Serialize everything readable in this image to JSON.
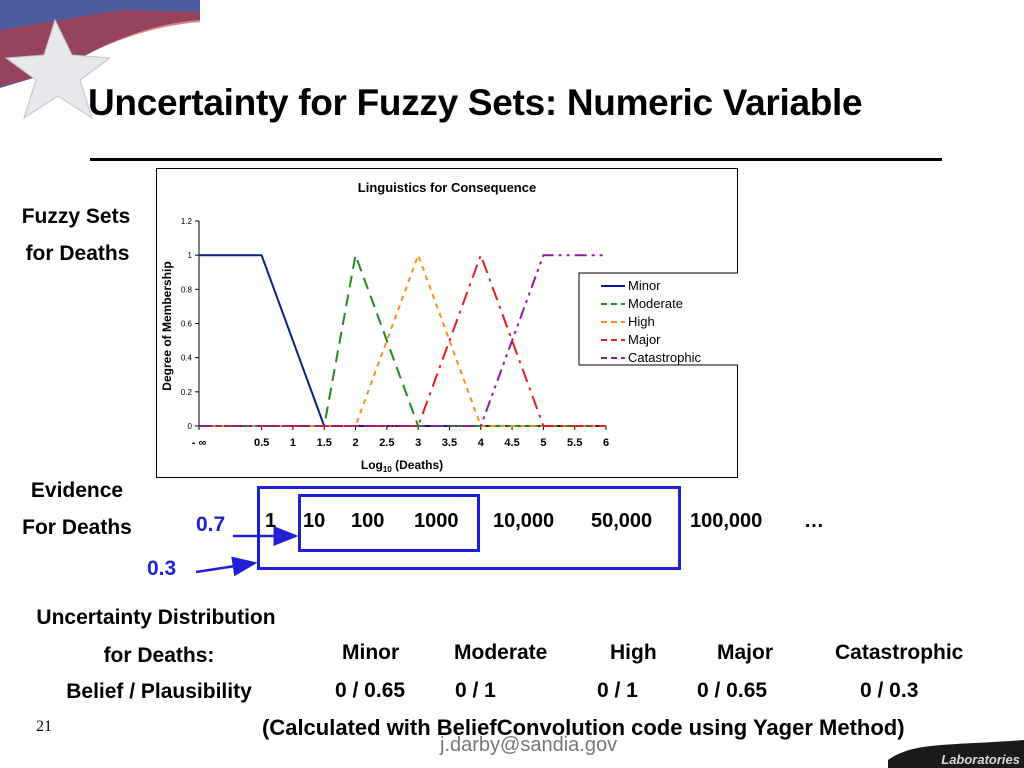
{
  "slide": {
    "title": "Uncertainty for Fuzzy Sets: Numeric Variable",
    "page_number": "21",
    "footer_email_fragment": "j.darby@sandia.gov",
    "footer_logo_text": "Laboratories"
  },
  "left_labels": {
    "fuzzy_sets_line1": "Fuzzy Sets",
    "fuzzy_sets_line2": "for Deaths",
    "evidence_line1": "Evidence",
    "evidence_line2": "For Deaths",
    "uncertainty_line1": "Uncertainty Distribution",
    "uncertainty_line2": "for Deaths:",
    "uncertainty_line3": "Belief / Plausibility"
  },
  "evidence": {
    "weight_high": "0.7",
    "weight_low": "0.3",
    "values": [
      "1",
      "10",
      "100",
      "1000",
      "10,000",
      "50,000",
      "100,000",
      "…"
    ]
  },
  "results": {
    "categories": [
      "Minor",
      "Moderate",
      "High",
      "Major",
      "Catastrophic"
    ],
    "belief_plausibility": [
      "0 / 0.65",
      "0 / 1",
      "0 / 1",
      "0 / 0.65",
      "0 / 0.3"
    ],
    "note": "(Calculated with BeliefConvolution code using Yager Method)"
  },
  "colors": {
    "minor": "#0a1e8c",
    "moderate": "#1e8c1e",
    "high": "#ff8c1a",
    "major": "#e02020",
    "catastrophic": "#8c1e9c",
    "accent_blue": "#1f1fd6"
  },
  "chart_data": {
    "type": "line",
    "title": "Linguistics for Consequence",
    "xlabel": "Log10 (Deaths)",
    "xlabel_main": "Log",
    "xlabel_sub": "10",
    "xlabel_tail": " (Deaths)",
    "ylabel": "Degree of Membership",
    "xlim": [
      -0.5,
      6
    ],
    "ylim": [
      0,
      1.2
    ],
    "x_ticks": [
      -0.5,
      0.5,
      1,
      1.5,
      2,
      2.5,
      3,
      3.5,
      4,
      4.5,
      5,
      5.5,
      6
    ],
    "x_tick_labels": [
      "- ∞",
      "0.5",
      "1",
      "1.5",
      "2",
      "2.5",
      "3",
      "3.5",
      "4",
      "4.5",
      "5",
      "5.5",
      "6"
    ],
    "y_ticks": [
      0,
      0.2,
      0.4,
      0.6,
      0.8,
      1,
      1.2
    ],
    "y_tick_labels": [
      "0",
      "0.2",
      "0.4",
      "0.6",
      "0.8",
      "1",
      "1.2"
    ],
    "grid": false,
    "legend_position": "right",
    "series": [
      {
        "name": "Minor",
        "style": "solid",
        "color_key": "minor",
        "points": [
          [
            -0.5,
            1
          ],
          [
            0.5,
            1
          ],
          [
            1.5,
            0
          ],
          [
            6,
            0
          ]
        ]
      },
      {
        "name": "Moderate",
        "style": "dash",
        "color_key": "moderate",
        "points": [
          [
            -0.5,
            0
          ],
          [
            0.5,
            0
          ],
          [
            1.5,
            0
          ],
          [
            2,
            1
          ],
          [
            3,
            0
          ],
          [
            6,
            0
          ]
        ]
      },
      {
        "name": "High",
        "style": "dot",
        "color_key": "high",
        "points": [
          [
            -0.5,
            0
          ],
          [
            2,
            0
          ],
          [
            3,
            1
          ],
          [
            4,
            0
          ],
          [
            6,
            0
          ]
        ]
      },
      {
        "name": "Major",
        "style": "dashdot",
        "color_key": "major",
        "points": [
          [
            -0.5,
            0
          ],
          [
            3,
            0
          ],
          [
            4,
            1
          ],
          [
            5,
            0
          ],
          [
            6,
            0
          ]
        ]
      },
      {
        "name": "Catastrophic",
        "style": "dashdotdot",
        "color_key": "catastrophic",
        "points": [
          [
            -0.5,
            0
          ],
          [
            4,
            0
          ],
          [
            5,
            1
          ],
          [
            6,
            1
          ]
        ]
      }
    ]
  }
}
